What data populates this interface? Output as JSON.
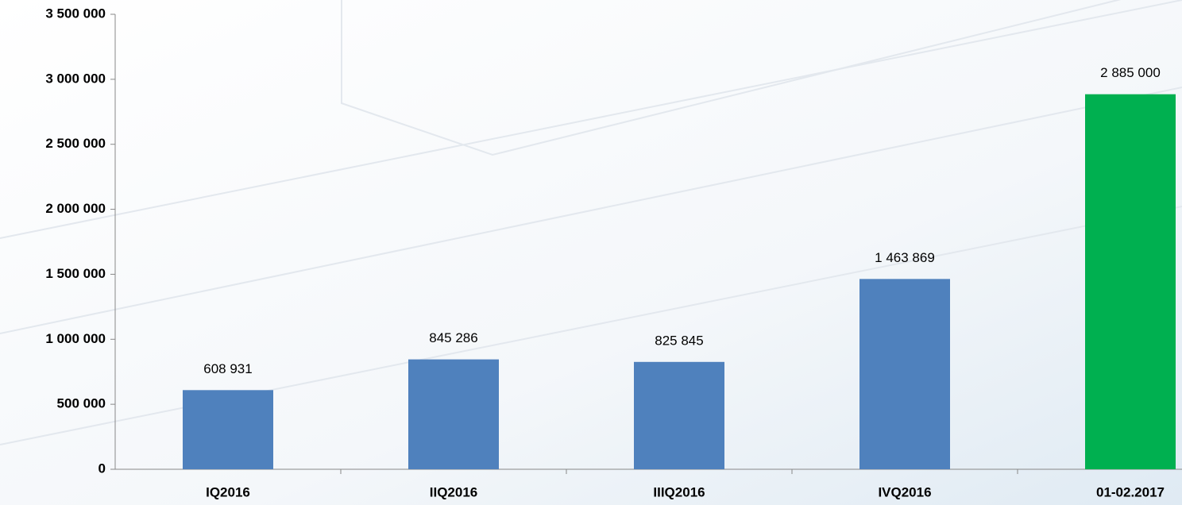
{
  "chart_data": {
    "type": "bar",
    "categories": [
      "IQ2016",
      "IIQ2016",
      "IIIQ2016",
      "IVQ2016",
      "01-02.2017"
    ],
    "values": [
      608931,
      845286,
      825845,
      1463869,
      2885000
    ],
    "value_labels": [
      "608 931",
      "845 286",
      "825 845",
      "1 463 869",
      "2 885 000"
    ],
    "colors": [
      "#4f81bd",
      "#4f81bd",
      "#4f81bd",
      "#4f81bd",
      "#00b050"
    ],
    "ylim": [
      0,
      3500000
    ],
    "yticks": [
      0,
      {
        "value": 500000,
        "label": "500 000"
      },
      {
        "value": 1000000,
        "label": "1 000 000"
      },
      {
        "value": 1500000,
        "label": "1 500 000"
      },
      {
        "value": 2000000,
        "label": "2 000 000"
      },
      {
        "value": 2500000,
        "label": "2 500 000"
      },
      {
        "value": 3000000,
        "label": "3 000 000"
      },
      {
        "value": 3500000,
        "label": "3 500 000"
      }
    ]
  }
}
